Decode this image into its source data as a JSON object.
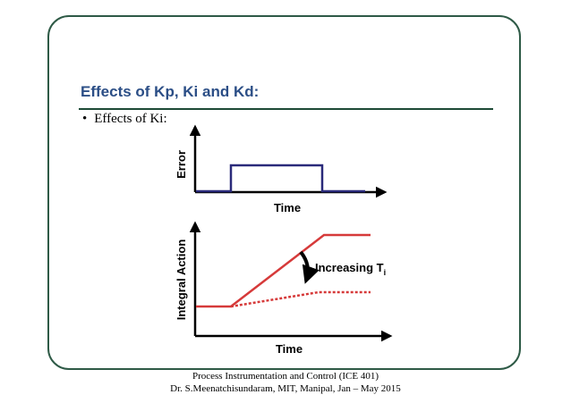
{
  "slide": {
    "title": "Effects of Kp, Ki and Kd:",
    "bullet": "Effects of Ki:"
  },
  "figure": {
    "top_plot": {
      "ylabel": "Error",
      "xlabel": "Time"
    },
    "bottom_plot": {
      "ylabel": "Integral Action",
      "xlabel": "Time",
      "annotation": "Increasing T",
      "annotation_subscript": "i"
    }
  },
  "footer": {
    "line1": "Process Instrumentation and Control (ICE 401)",
    "line2": "Dr. S.Meenatchisundaram, MIT, Manipal, Jan – May 2015"
  },
  "colors": {
    "frame": "#2e5a46",
    "title": "#2b4e86",
    "error_pulse": "#2a2a7a",
    "integral_line": "#d63a3a"
  }
}
